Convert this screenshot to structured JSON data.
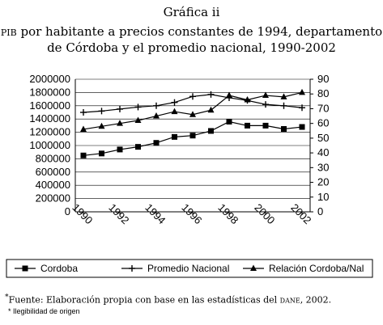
{
  "figure": {
    "title_line1": "Gráfica ii",
    "title_line2_prefix": "pib",
    "title_line2_rest": " por habitante a precios constantes de 1994, departamento",
    "title_line3": "de Córdoba y el promedio nacional, 1990-2002",
    "source_mark": "*",
    "source_text": "Fuente: Elaboración propia con base en las estadísticas del ",
    "source_dane": "dane",
    "source_tail": ", 2002.",
    "note": "* Ilegibilidad de origen"
  },
  "colors": {
    "series": "#000000",
    "grid": "#000000",
    "background": "#ffffff"
  },
  "chart_data": {
    "type": "line",
    "title": "",
    "xlabel": "",
    "ylabel": "",
    "x": [
      1990,
      1991,
      1992,
      1993,
      1994,
      1995,
      1996,
      1997,
      1998,
      1999,
      2000,
      2001,
      2002
    ],
    "x_tick_labels": [
      "1990",
      "1992",
      "1994",
      "1996",
      "1998",
      "2000",
      "2002"
    ],
    "y_left_ticks": [
      "0",
      "200000",
      "400000",
      "600000",
      "800000",
      "1000000",
      "1200000",
      "1400000",
      "1600000",
      "1800000",
      "2000000"
    ],
    "y_right_ticks": [
      "0",
      "10",
      "20",
      "30",
      "40",
      "50",
      "60",
      "70",
      "80",
      "90"
    ],
    "ylim_left": [
      0,
      2000000
    ],
    "ylim_right": [
      0,
      90
    ],
    "grid": "horizontal",
    "legend_placement": "bottom",
    "series": [
      {
        "name": "Cordoba",
        "axis": "left",
        "marker": "square",
        "values": [
          850000,
          880000,
          940000,
          980000,
          1040000,
          1130000,
          1150000,
          1220000,
          1360000,
          1300000,
          1300000,
          1250000,
          1280000
        ]
      },
      {
        "name": "Promedio Nacional",
        "axis": "left",
        "marker": "diamond",
        "values": [
          1500000,
          1520000,
          1550000,
          1580000,
          1600000,
          1650000,
          1740000,
          1770000,
          1720000,
          1680000,
          1620000,
          1600000,
          1570000
        ]
      },
      {
        "name": "Relación Cordoba/Nal",
        "axis": "right",
        "marker": "triangle",
        "values": [
          56,
          58,
          60,
          62,
          65,
          68,
          66,
          69,
          79,
          76,
          79,
          78,
          81
        ]
      }
    ]
  }
}
